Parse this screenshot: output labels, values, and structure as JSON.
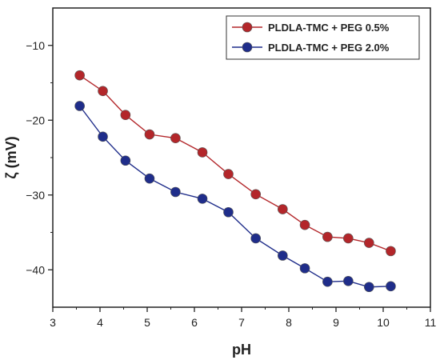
{
  "chart_data": {
    "type": "line",
    "xlabel": "pH",
    "ylabel": "ζ (mV)",
    "xlim": [
      3,
      11
    ],
    "ylim": [
      -45,
      -5
    ],
    "xticks": [
      3,
      4,
      5,
      6,
      7,
      8,
      9,
      10,
      11
    ],
    "yticks": [
      -10,
      -20,
      -30,
      -40
    ],
    "grid": false,
    "legend_position": "top-right",
    "series": [
      {
        "name": "PLDLA-TMC + PEG 0.5%",
        "color": "#b3262a",
        "x": [
          3.57,
          4.06,
          4.54,
          5.05,
          5.6,
          6.17,
          6.72,
          7.3,
          7.87,
          8.34,
          8.82,
          9.26,
          9.7,
          10.16
        ],
        "y": [
          -14.0,
          -16.1,
          -19.3,
          -21.9,
          -22.4,
          -24.3,
          -27.2,
          -29.9,
          -31.9,
          -34.0,
          -35.6,
          -35.8,
          -36.4,
          -37.5
        ]
      },
      {
        "name": "PLDLA-TMC + PEG 2.0%",
        "color": "#1f2d8a",
        "x": [
          3.57,
          4.06,
          4.54,
          5.05,
          5.6,
          6.17,
          6.72,
          7.3,
          7.87,
          8.34,
          8.82,
          9.26,
          9.7,
          10.16
        ],
        "y": [
          -18.1,
          -22.2,
          -25.4,
          -27.8,
          -29.6,
          -30.5,
          -32.3,
          -35.8,
          -38.1,
          -39.8,
          -41.6,
          -41.5,
          -42.3,
          -42.2
        ]
      }
    ]
  }
}
